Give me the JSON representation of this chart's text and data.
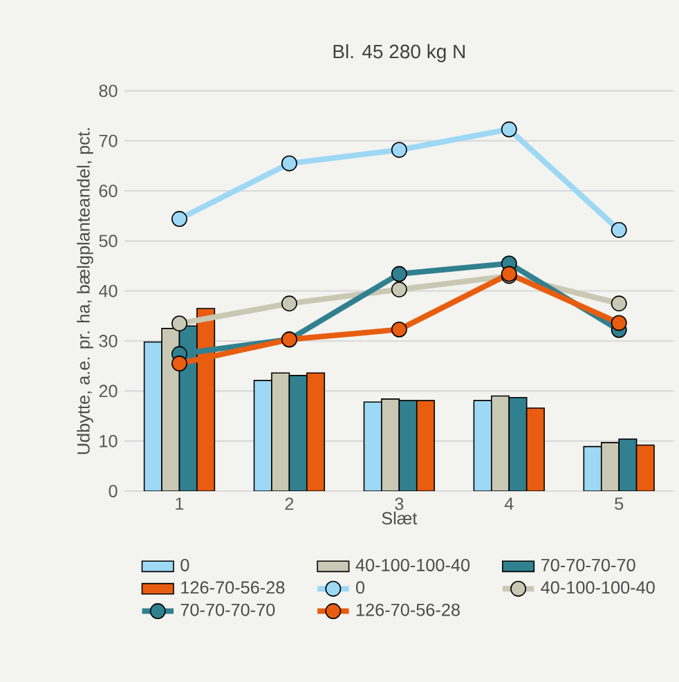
{
  "chart_data": {
    "type": "bar",
    "title": "Bl. 45 280 kg N",
    "xlabel": "Slæt",
    "ylabel": "Udbytte, a.e. pr. ha, bælgplanteandel, pct.",
    "categories": [
      "1",
      "2",
      "3",
      "4",
      "5"
    ],
    "series": [
      {
        "name": "0",
        "color": "#9dd8f5",
        "values": [
          29.8,
          22.1,
          17.8,
          18.1,
          8.9
        ]
      },
      {
        "name": "40-100-100-40",
        "color": "#c9c8b5",
        "values": [
          32.5,
          23.6,
          18.4,
          19.0,
          9.7
        ]
      },
      {
        "name": "70-70-70-70",
        "color": "#31808f",
        "values": [
          33.0,
          23.1,
          18.1,
          18.7,
          10.4
        ]
      },
      {
        "name": "126-70-56-28",
        "color": "#e85d10",
        "values": [
          36.5,
          23.6,
          18.1,
          16.6,
          9.2
        ]
      },
      {
        "name": "0",
        "type": "line",
        "color": "#9dd8f5",
        "values": [
          54.4,
          65.5,
          68.2,
          72.3,
          52.2
        ]
      },
      {
        "name": "40-100-100-40",
        "type": "line",
        "color": "#c9c8b5",
        "values": [
          33.5,
          37.5,
          40.3,
          43.0,
          37.5
        ]
      },
      {
        "name": "70-70-70-70",
        "type": "line",
        "color": "#31808f",
        "values": [
          27.4,
          30.3,
          43.4,
          45.5,
          32.2
        ]
      },
      {
        "name": "126-70-56-28",
        "type": "line",
        "color": "#e85d10",
        "values": [
          25.5,
          30.3,
          32.3,
          43.4,
          33.6
        ]
      }
    ],
    "ylim": [
      0,
      80
    ],
    "yticks": [
      0,
      10,
      20,
      30,
      40,
      50,
      60,
      70,
      80
    ],
    "grid": "y",
    "legend": "bottom",
    "marker": "circle",
    "line_style": "solid"
  }
}
